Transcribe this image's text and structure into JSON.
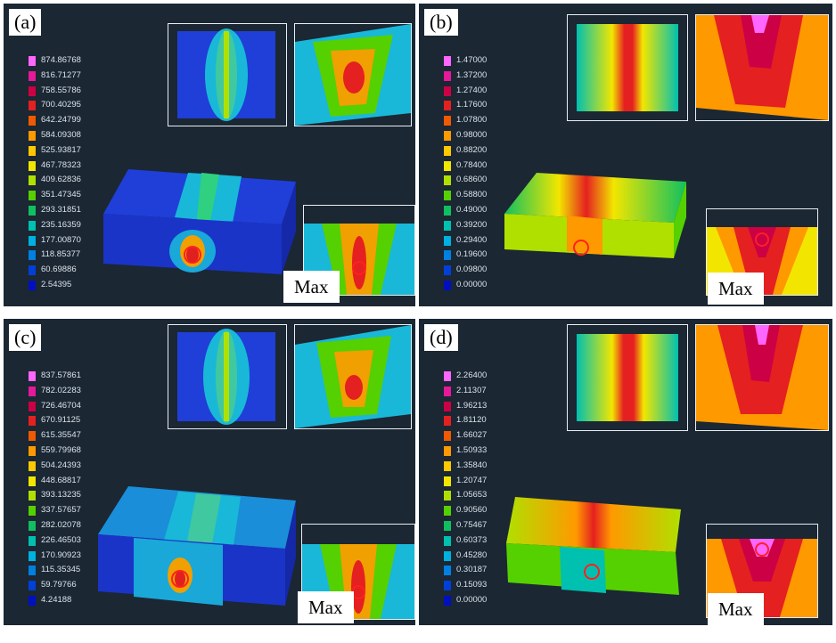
{
  "panels": [
    {
      "label": "(a)",
      "max_label": "Max",
      "legend": [
        "874.86768",
        "816.71277",
        "758.55786",
        "700.40295",
        "642.24799",
        "584.09308",
        "525.93817",
        "467.78323",
        "409.62836",
        "351.47345",
        "293.31851",
        "235.16359",
        "177.00870",
        "118.85377",
        "60.69886",
        "2.54395"
      ]
    },
    {
      "label": "(b)",
      "max_label": "Max",
      "legend": [
        "1.47000",
        "1.37200",
        "1.27400",
        "1.17600",
        "1.07800",
        "0.98000",
        "0.88200",
        "0.78400",
        "0.68600",
        "0.58800",
        "0.49000",
        "0.39200",
        "0.29400",
        "0.19600",
        "0.09800",
        "0.00000"
      ]
    },
    {
      "label": "(c)",
      "max_label": "Max",
      "legend": [
        "837.57861",
        "782.02283",
        "726.46704",
        "670.91125",
        "615.35547",
        "559.79968",
        "504.24393",
        "448.68817",
        "393.13235",
        "337.57657",
        "282.02078",
        "226.46503",
        "170.90923",
        "115.35345",
        "59.79766",
        "4.24188"
      ]
    },
    {
      "label": "(d)",
      "max_label": "Max",
      "legend": [
        "2.26400",
        "2.11307",
        "1.96213",
        "1.81120",
        "1.66027",
        "1.50933",
        "1.35840",
        "1.20747",
        "1.05653",
        "0.90560",
        "0.75467",
        "0.60373",
        "0.45280",
        "0.30187",
        "0.15093",
        "0.00000"
      ]
    }
  ],
  "colors": {
    "scale": [
      "#ff66ff",
      "#e6199a",
      "#cc0044",
      "#e52020",
      "#f05a00",
      "#ff9900",
      "#ffc800",
      "#f2e600",
      "#b0e000",
      "#55d000",
      "#10c060",
      "#00c0b0",
      "#00b0e0",
      "#0080e0",
      "#0040d8",
      "#0010c0"
    ],
    "background": "#1b2733"
  }
}
